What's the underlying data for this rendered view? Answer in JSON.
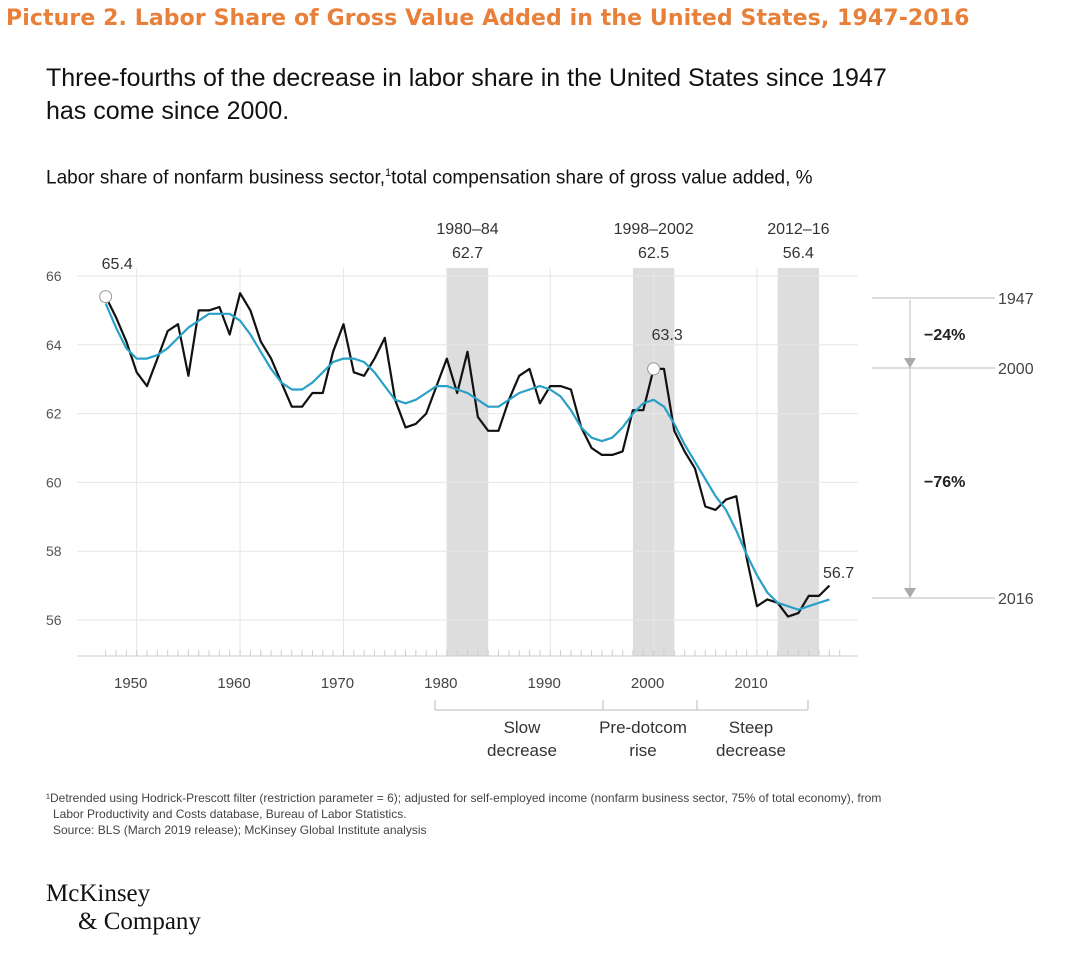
{
  "caption": "Picture 2. Labor Share of Gross Value Added in the United States, 1947-2016",
  "headline": [
    "Three-fourths of the decrease in labor share in the United States since 1947",
    "has come since 2000."
  ],
  "subtitle": "Labor share of nonfarm business sector,",
  "subtitle_sup": "1",
  "subtitle_rest": "total compensation share of gross value added, %",
  "footnote": [
    "¹Detrended using Hodrick-Prescott filter (restriction parameter = 6); adjusted for self-employed income (nonfarm business sector, 75% of total economy), from",
    "Labor Productivity and Costs database, Bureau of Labor Statistics.",
    "Source: BLS (March 2019 release); McKinsey Global Institute analysis"
  ],
  "logo": [
    "McKinsey",
    "& Company"
  ],
  "colors": {
    "caption": "#e8803a",
    "actual": "#111111",
    "trend": "#2aa0c6",
    "shade": "#dddddd",
    "grid": "#e6e6e6"
  },
  "chart_data": {
    "type": "line",
    "title": "Labor share of nonfarm business sector, total compensation share of gross value added, %",
    "x_ticks": [
      1950,
      1960,
      1970,
      1980,
      1990,
      2000,
      2010
    ],
    "y_ticks": [
      56,
      58,
      60,
      62,
      64,
      66
    ],
    "xlim": [
      1945,
      2020
    ],
    "ylim": [
      55,
      66
    ],
    "grid": true,
    "series": [
      {
        "name": "",
        "color": "#111111",
        "x": [
          1947,
          1948,
          1949,
          1950,
          1951,
          1952,
          1953,
          1954,
          1955,
          1956,
          1957,
          1958,
          1959,
          1960,
          1961,
          1962,
          1963,
          1964,
          1965,
          1966,
          1967,
          1968,
          1969,
          1970,
          1971,
          1972,
          1973,
          1974,
          1975,
          1976,
          1977,
          1978,
          1979,
          1980,
          1981,
          1982,
          1983,
          1984,
          1985,
          1986,
          1987,
          1988,
          1989,
          1990,
          1991,
          1992,
          1993,
          1994,
          1995,
          1996,
          1997,
          1998,
          1999,
          2000,
          2001,
          2002,
          2003,
          2004,
          2005,
          2006,
          2007,
          2008,
          2009,
          2010,
          2011,
          2012,
          2013,
          2014,
          2015,
          2016,
          2017
        ],
        "y": [
          65.4,
          64.8,
          64.1,
          63.2,
          62.8,
          63.6,
          64.4,
          64.6,
          63.1,
          65.0,
          65.0,
          65.1,
          64.3,
          65.5,
          65.0,
          64.1,
          63.6,
          62.9,
          62.2,
          62.2,
          62.6,
          62.6,
          63.8,
          64.6,
          63.2,
          63.1,
          63.6,
          64.2,
          62.4,
          61.6,
          61.7,
          62.0,
          62.8,
          63.6,
          62.6,
          63.8,
          61.9,
          61.5,
          61.5,
          62.4,
          63.1,
          63.3,
          62.3,
          62.8,
          62.8,
          62.7,
          61.6,
          61.0,
          60.8,
          60.8,
          60.9,
          62.1,
          62.1,
          63.3,
          63.3,
          61.5,
          60.9,
          60.4,
          59.3,
          59.2,
          59.5,
          59.6,
          57.8,
          56.4,
          56.6,
          56.5,
          56.1,
          56.2,
          56.7,
          56.7,
          57.0
        ]
      },
      {
        "name": "",
        "color": "#2aa0c6",
        "x": [
          1947,
          1948,
          1949,
          1950,
          1951,
          1952,
          1953,
          1954,
          1955,
          1956,
          1957,
          1958,
          1959,
          1960,
          1961,
          1962,
          1963,
          1964,
          1965,
          1966,
          1967,
          1968,
          1969,
          1970,
          1971,
          1972,
          1973,
          1974,
          1975,
          1976,
          1977,
          1978,
          1979,
          1980,
          1981,
          1982,
          1983,
          1984,
          1985,
          1986,
          1987,
          1988,
          1989,
          1990,
          1991,
          1992,
          1993,
          1994,
          1995,
          1996,
          1997,
          1998,
          1999,
          2000,
          2001,
          2002,
          2003,
          2004,
          2005,
          2006,
          2007,
          2008,
          2009,
          2010,
          2011,
          2012,
          2013,
          2014,
          2015,
          2016,
          2017
        ],
        "y": [
          65.2,
          64.5,
          63.9,
          63.6,
          63.6,
          63.7,
          63.9,
          64.2,
          64.5,
          64.7,
          64.9,
          64.9,
          64.9,
          64.7,
          64.3,
          63.8,
          63.3,
          62.9,
          62.7,
          62.7,
          62.9,
          63.2,
          63.5,
          63.6,
          63.6,
          63.5,
          63.2,
          62.8,
          62.4,
          62.3,
          62.4,
          62.6,
          62.8,
          62.8,
          62.7,
          62.6,
          62.4,
          62.2,
          62.2,
          62.4,
          62.6,
          62.7,
          62.8,
          62.7,
          62.5,
          62.1,
          61.6,
          61.3,
          61.2,
          61.3,
          61.6,
          62.0,
          62.3,
          62.4,
          62.2,
          61.7,
          61.1,
          60.6,
          60.1,
          59.6,
          59.2,
          58.6,
          57.9,
          57.3,
          56.8,
          56.5,
          56.4,
          56.3,
          56.4,
          56.5,
          56.6
        ]
      }
    ],
    "annotations": [
      {
        "label": "65.4",
        "x": 1947,
        "y": 65.4
      },
      {
        "label": "63.3",
        "x": 2000,
        "y": 63.3
      },
      {
        "label": "56.7",
        "x": 2016,
        "y": 56.7
      }
    ],
    "shaded_periods": [
      {
        "label": "1980–84",
        "value": "62.7",
        "start": 1980,
        "end": 1984
      },
      {
        "label": "1998–2002",
        "value": "62.5",
        "start": 1998,
        "end": 2002
      },
      {
        "label": "2012–16",
        "value": "56.4",
        "start": 2012,
        "end": 2016
      }
    ],
    "periods": [
      {
        "label": [
          "Slow",
          "decrease"
        ],
        "start": 1980,
        "end": 1997
      },
      {
        "label": [
          "Pre-dotcom",
          "rise"
        ],
        "start": 1997,
        "end": 2000
      },
      {
        "label": [
          "Steep",
          "decrease"
        ],
        "start": 2000,
        "end": 2015
      }
    ],
    "right_labels": [
      {
        "label": "1947",
        "y": 65.4
      },
      {
        "label": "2000",
        "y": 63.3
      },
      {
        "label": "2016",
        "y": 56.6
      }
    ],
    "changes": [
      {
        "label": "−24%",
        "from": 65.4,
        "to": 63.3
      },
      {
        "label": "−76%",
        "from": 63.3,
        "to": 56.6
      }
    ]
  }
}
